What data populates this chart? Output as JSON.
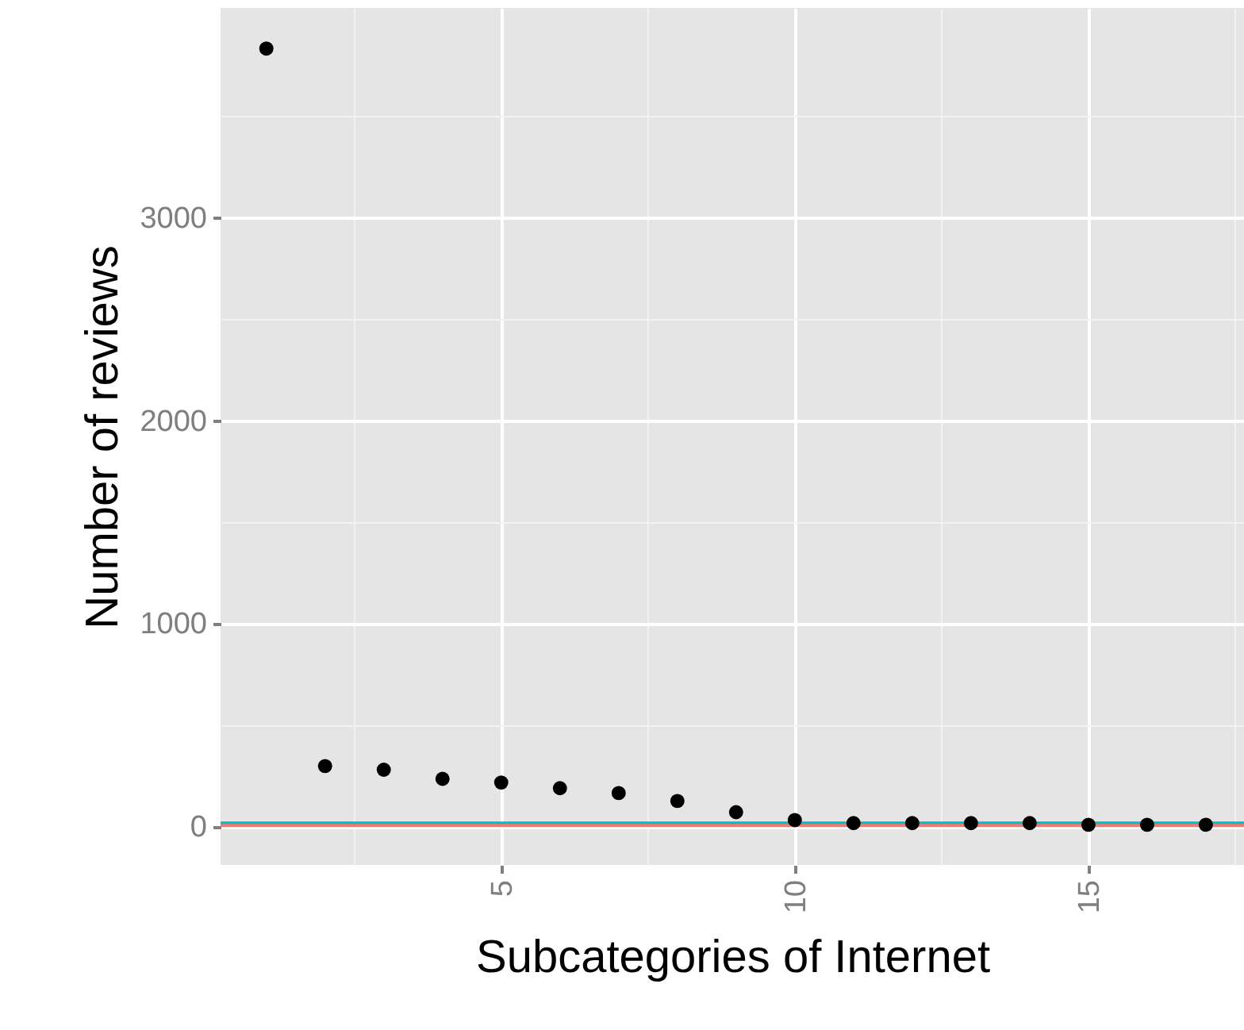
{
  "chart_data": {
    "type": "scatter",
    "xlabel": "Subcategories of Internet",
    "ylabel": "Number of reviews",
    "x": [
      1,
      2,
      3,
      4,
      5,
      6,
      7,
      8,
      9,
      10,
      11,
      12,
      13,
      14,
      15,
      16,
      17
    ],
    "series": [
      {
        "color": "#000000",
        "values": [
          3830,
          297,
          279,
          234,
          216,
          188,
          164,
          125,
          70,
          31,
          16,
          16,
          16,
          16,
          8,
          8,
          8
        ]
      }
    ],
    "xlim": [
      0.22,
      17.65
    ],
    "ylim": [
      -190,
      4030
    ],
    "xticks": [
      {
        "value": 2.5,
        "label": null
      },
      5,
      {
        "value": 7.5,
        "label": null
      },
      10,
      {
        "value": 12.5,
        "label": null
      },
      15,
      {
        "value": 17.5,
        "label": null
      }
    ],
    "yticks": [
      0,
      {
        "value": 500,
        "label": null
      },
      1000,
      {
        "value": 1500,
        "label": null
      },
      2000,
      {
        "value": 2500,
        "label": null
      },
      3000,
      {
        "value": 3500,
        "label": null
      }
    ],
    "ref_lines": [
      {
        "axis": "y",
        "value": 16,
        "color": "#00bfc4"
      },
      {
        "axis": "y",
        "value": 4,
        "color": "#f8766d"
      }
    ],
    "grid": true,
    "marker": "circle"
  }
}
